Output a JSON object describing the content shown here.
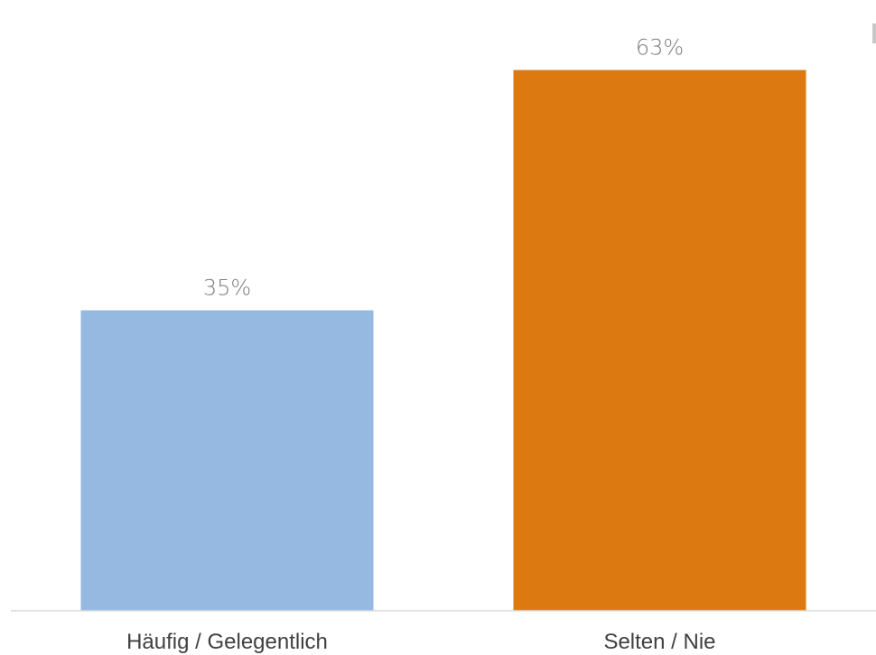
{
  "chart_data": {
    "type": "bar",
    "categories": [
      "Häufig / Gelegentlich",
      "Selten / Nie"
    ],
    "values": [
      35,
      63
    ],
    "value_labels": [
      "35%",
      "63%"
    ],
    "colors": [
      "#95B9E0",
      "#DC7A11"
    ],
    "ylim": [
      0,
      70
    ],
    "grid": false,
    "title": "",
    "xlabel": "",
    "ylabel": ""
  }
}
